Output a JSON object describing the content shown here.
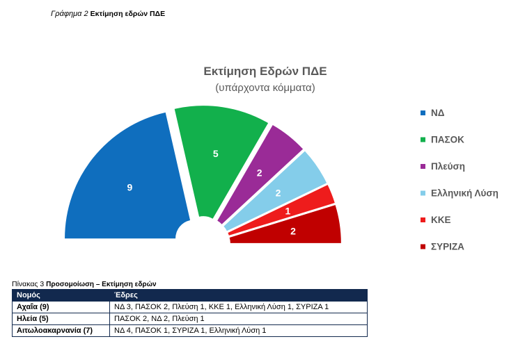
{
  "figure_caption": {
    "label": "Γράφημα 2",
    "title": "Εκτίμηση εδρών ΠΔΕ"
  },
  "chart_data": {
    "type": "pie",
    "subtype": "semicircle-parliament",
    "title": "Εκτίμηση Εδρών ΠΔΕ",
    "subtitle": "(υπάρχοντα κόμματα)",
    "categories": [
      "ΝΔ",
      "ΠΑΣΟΚ",
      "Πλεύση",
      "Ελληνική Λύση",
      "ΚΚΕ",
      "ΣΥΡΙΖΑ"
    ],
    "values": [
      9,
      5,
      2,
      2,
      1,
      2
    ],
    "colors": [
      "#0f6ebe",
      "#12b04c",
      "#9a2b97",
      "#84cdea",
      "#ee1c1c",
      "#c00000"
    ],
    "legend_position": "right"
  },
  "table_caption": {
    "label": "Πίνακας 3",
    "title": "Προσομοίωση – Εκτίμηση εδρών"
  },
  "table": {
    "headers": [
      "Νομός",
      "Έδρες"
    ],
    "rows": [
      [
        "Αχαΐα (9)",
        "ΝΔ 3, ΠΑΣΟΚ 2, Πλεύση 1, ΚΚΕ 1, Ελληνική Λύση 1, ΣΥΡΙΖΑ 1"
      ],
      [
        "Ηλεία (5)",
        "ΠΑΣΟΚ 2, ΝΔ 2, Πλεύση 1"
      ],
      [
        "Αιτωλοακαρνανία (7)",
        "ΝΔ 4, ΠΑΣΟΚ 1, ΣΥΡΙΖΑ 1, Ελληνική Λύση 1"
      ]
    ]
  }
}
